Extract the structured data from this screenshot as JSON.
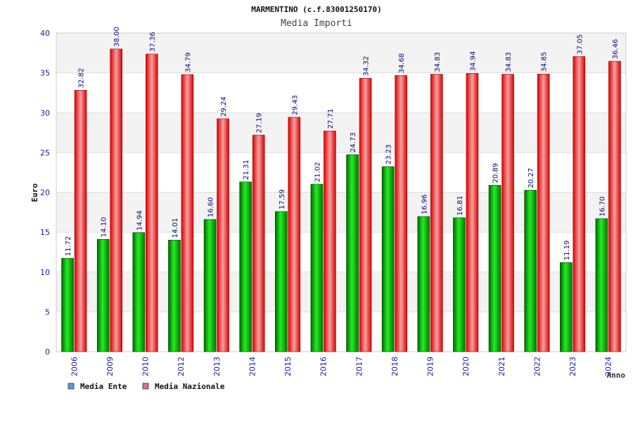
{
  "chart_data": {
    "type": "bar",
    "title": "MARMENTINO (c.f.83001250170)",
    "subtitle": "Media Importi",
    "ylabel": "Euro",
    "xlabel": "Anno",
    "ylim": [
      0,
      40
    ],
    "yticks": [
      0,
      5,
      10,
      15,
      20,
      25,
      30,
      35,
      40
    ],
    "ytick_labels": [
      "0",
      "5",
      "10",
      "15",
      "20",
      "25",
      "30",
      "35",
      "40"
    ],
    "grid": true,
    "legend_position": "bottom-left",
    "categories": [
      "2006",
      "2009",
      "2010",
      "2012",
      "2013",
      "2014",
      "2015",
      "2016",
      "2017",
      "2018",
      "2019",
      "2020",
      "2021",
      "2022",
      "2023",
      "2024"
    ],
    "series": [
      {
        "name": "Media Ente",
        "color": "#00aa00",
        "legend_color": "#5b9bd5",
        "values": [
          11.72,
          14.1,
          14.94,
          14.01,
          16.6,
          21.31,
          17.59,
          21.02,
          24.73,
          23.23,
          16.96,
          16.81,
          20.89,
          20.27,
          11.19,
          16.7
        ],
        "labels": [
          "11.72",
          "14.10",
          "14.94",
          "14.01",
          "16.60",
          "21.31",
          "17.59",
          "21.02",
          "24.73",
          "23.23",
          "16.96",
          "16.81",
          "20.89",
          "20.27",
          "11.19",
          "16.70"
        ]
      },
      {
        "name": "Media Nazionale",
        "color": "#ee1111",
        "legend_color": "#d9739f",
        "values": [
          32.82,
          38.0,
          37.36,
          34.79,
          29.24,
          27.19,
          29.43,
          27.71,
          34.32,
          34.68,
          34.83,
          34.94,
          34.83,
          34.85,
          37.05,
          36.46
        ],
        "labels": [
          "32.82",
          "38.00",
          "37.36",
          "34.79",
          "29.24",
          "27.19",
          "29.43",
          "27.71",
          "34.32",
          "34.68",
          "34.83",
          "34.94",
          "34.83",
          "34.85",
          "37.05",
          "36.46"
        ]
      }
    ]
  }
}
